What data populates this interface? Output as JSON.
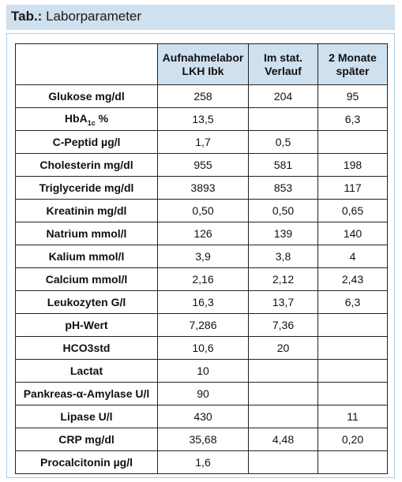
{
  "title": {
    "prefix": "Tab.:",
    "text": "Laborparameter"
  },
  "table": {
    "headers": [
      [
        "Aufnahmelabor",
        "LKH Ibk"
      ],
      [
        "Im stat.",
        "Verlauf"
      ],
      [
        "2 Monate",
        "später"
      ]
    ],
    "rows": [
      {
        "param": "Glukose mg/dl",
        "values": [
          "258",
          "204",
          "95"
        ]
      },
      {
        "param_parts": [
          "HbA",
          "1c",
          " %"
        ],
        "values": [
          "13,5",
          "",
          "6,3"
        ]
      },
      {
        "param": "C-Peptid µg/l",
        "values": [
          "1,7",
          "0,5",
          ""
        ]
      },
      {
        "param": "Cholesterin mg/dl",
        "values": [
          "955",
          "581",
          "198"
        ]
      },
      {
        "param": "Triglyceride mg/dl",
        "values": [
          "3893",
          "853",
          "117"
        ]
      },
      {
        "param": "Kreatinin mg/dl",
        "values": [
          "0,50",
          "0,50",
          "0,65"
        ]
      },
      {
        "param": "Natrium mmol/l",
        "values": [
          "126",
          "139",
          "140"
        ]
      },
      {
        "param": "Kalium mmol/l",
        "values": [
          "3,9",
          "3,8",
          "4"
        ]
      },
      {
        "param": "Calcium mmol/l",
        "values": [
          "2,16",
          "2,12",
          "2,43"
        ]
      },
      {
        "param": "Leukozyten G/l",
        "values": [
          "16,3",
          "13,7",
          "6,3"
        ]
      },
      {
        "param": "pH-Wert",
        "values": [
          "7,286",
          "7,36",
          ""
        ]
      },
      {
        "param": "HCO3std",
        "values": [
          "10,6",
          "20",
          ""
        ]
      },
      {
        "param": "Lactat",
        "values": [
          "10",
          "",
          ""
        ]
      },
      {
        "param": "Pankreas-α-Amylase U/l",
        "values": [
          "90",
          "",
          ""
        ]
      },
      {
        "param": "Lipase U/l",
        "values": [
          "430",
          "",
          "11"
        ]
      },
      {
        "param": "CRP mg/dl",
        "values": [
          "35,68",
          "4,48",
          "0,20"
        ]
      },
      {
        "param": "Procalcitonin µg/l",
        "values": [
          "1,6",
          "",
          ""
        ]
      }
    ]
  },
  "colors": {
    "header_fill": "#cfe0ef",
    "frame_border": "#a9cfe6",
    "grid": "#222222"
  }
}
